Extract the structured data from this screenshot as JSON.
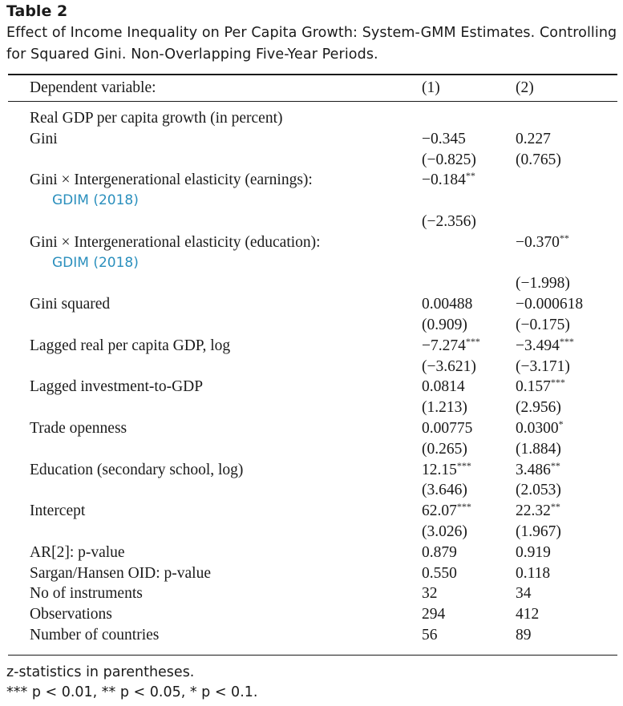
{
  "caption": {
    "label": "Table 2",
    "text": "Effect of Income Inequality on Per Capita Growth: System-GMM Estimates. Controlling for Squared Gini. Non-Overlapping Five-Year Periods."
  },
  "header": {
    "label": "Dependent variable:",
    "col1": "(1)",
    "col2": "(2)"
  },
  "rows": [
    {
      "label": "Real GDP per capita growth (in percent)",
      "c1": "",
      "s1": "",
      "c2": "",
      "s2": ""
    },
    {
      "label": "Gini",
      "c1": "−0.345",
      "s1": "",
      "c2": "0.227",
      "s2": ""
    },
    {
      "label": "",
      "c1": "(−0.825)",
      "s1": "",
      "c2": "(0.765)",
      "s2": ""
    },
    {
      "label": "Gini × Intergenerational elasticity (earnings):",
      "c1": "−0.184",
      "s1": "**",
      "c2": "",
      "s2": ""
    },
    {
      "link": "GDIM (2018)",
      "c1": "",
      "s1": "",
      "c2": "",
      "s2": ""
    },
    {
      "label": "",
      "c1": "(−2.356)",
      "s1": "",
      "c2": "",
      "s2": ""
    },
    {
      "label": "Gini × Intergenerational elasticity (education):",
      "c1": "",
      "s1": "",
      "c2": "−0.370",
      "s2": "**"
    },
    {
      "link": "GDIM (2018)",
      "c1": "",
      "s1": "",
      "c2": "",
      "s2": ""
    },
    {
      "label": "",
      "c1": "",
      "s1": "",
      "c2": "(−1.998)",
      "s2": ""
    },
    {
      "label": "Gini squared",
      "c1": "0.00488",
      "s1": "",
      "c2": "−0.000618",
      "s2": ""
    },
    {
      "label": "",
      "c1": "(0.909)",
      "s1": "",
      "c2": "(−0.175)",
      "s2": ""
    },
    {
      "label": "Lagged real per capita GDP, log",
      "c1": "−7.274",
      "s1": "***",
      "c2": "−3.494",
      "s2": "***"
    },
    {
      "label": "",
      "c1": "(−3.621)",
      "s1": "",
      "c2": "(−3.171)",
      "s2": ""
    },
    {
      "label": "Lagged investment-to-GDP",
      "c1": "0.0814",
      "s1": "",
      "c2": "0.157",
      "s2": "***"
    },
    {
      "label": "",
      "c1": "(1.213)",
      "s1": "",
      "c2": "(2.956)",
      "s2": ""
    },
    {
      "label": "Trade openness",
      "c1": "0.00775",
      "s1": "",
      "c2": "0.0300",
      "s2": "*"
    },
    {
      "label": "",
      "c1": "(0.265)",
      "s1": "",
      "c2": "(1.884)",
      "s2": ""
    },
    {
      "label": "Education (secondary school, log)",
      "c1": "12.15",
      "s1": "***",
      "c2": "3.486",
      "s2": "**"
    },
    {
      "label": "",
      "c1": "(3.646)",
      "s1": "",
      "c2": "(2.053)",
      "s2": ""
    },
    {
      "label": "Intercept",
      "c1": "62.07",
      "s1": "***",
      "c2": "22.32",
      "s2": "**"
    },
    {
      "label": "",
      "c1": "(3.026)",
      "s1": "",
      "c2": "(1.967)",
      "s2": ""
    },
    {
      "label": "AR[2]: p-value",
      "c1": "0.879",
      "s1": "",
      "c2": "0.919",
      "s2": ""
    },
    {
      "label": "Sargan/Hansen OID: p-value",
      "c1": "0.550",
      "s1": "",
      "c2": "0.118",
      "s2": ""
    },
    {
      "label": "No of instruments",
      "c1": "32",
      "s1": "",
      "c2": "34",
      "s2": ""
    },
    {
      "label": "Observations",
      "c1": "294",
      "s1": "",
      "c2": "412",
      "s2": ""
    },
    {
      "label": "Number of countries",
      "c1": "56",
      "s1": "",
      "c2": "89",
      "s2": ""
    }
  ],
  "footnotes": [
    "z-statistics in parentheses.",
    "*** p < 0.01, ** p < 0.05, * p < 0.1."
  ],
  "colors": {
    "link": "#2a8fbd",
    "text": "#1a1a1a"
  }
}
